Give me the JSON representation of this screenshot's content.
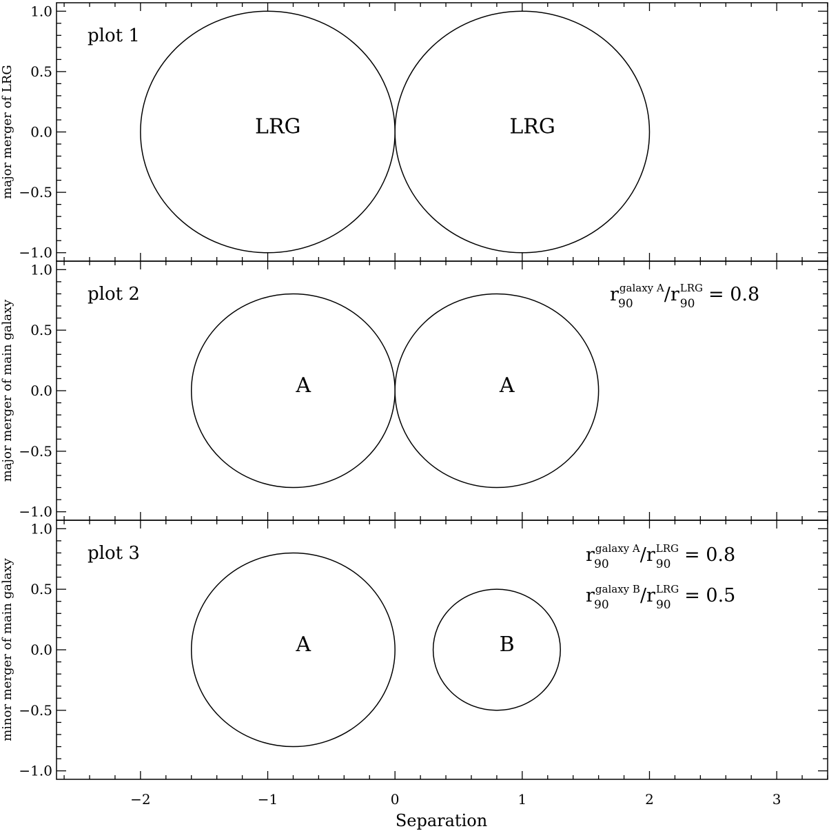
{
  "chart_data": {
    "type": "scatter",
    "x": {
      "label": "Separation",
      "ticks": [
        -2,
        -1,
        0,
        1,
        2,
        3
      ],
      "tick_labels": [
        "−2",
        "−1",
        "0",
        "1",
        "2",
        "3"
      ],
      "range": [
        -2.66,
        3.4
      ],
      "minor_step": 0.2
    },
    "panels": [
      {
        "id": "plot1",
        "title": "plot 1",
        "ylabel": "major merger of LRG",
        "ylim": [
          -1.07,
          1.07
        ],
        "yticks": [
          1.0,
          0.5,
          0.0,
          -0.5,
          -1.0
        ],
        "ytick_labels": [
          "1.0",
          "0.5",
          "0.0",
          "−0.5",
          "−1.0"
        ],
        "circles": [
          {
            "cx": -1.0,
            "cy": 0.0,
            "r": 1.0,
            "label": "LRG"
          },
          {
            "cx": 1.0,
            "cy": 0.0,
            "r": 1.0,
            "label": "LRG"
          }
        ],
        "annotations": []
      },
      {
        "id": "plot2",
        "title": "plot 2",
        "ylabel": "major merger of main galaxy",
        "ylim": [
          -1.07,
          1.07
        ],
        "yticks": [
          1.0,
          0.5,
          0.0,
          -0.5,
          -1.0
        ],
        "ytick_labels": [
          "1.0",
          "0.5",
          "0.0",
          "−0.5",
          "−1.0"
        ],
        "circles": [
          {
            "cx": -0.8,
            "cy": 0.0,
            "r": 0.8,
            "label": "A"
          },
          {
            "cx": 0.8,
            "cy": 0.0,
            "r": 0.8,
            "label": "A"
          }
        ],
        "annotations": [
          {
            "r": "r",
            "sub": "90",
            "sup1": "galaxy A",
            "slash": "/",
            "r2": "r",
            "sub2": "90",
            "sup2": "LRG",
            "eq": "= 0.8"
          }
        ]
      },
      {
        "id": "plot3",
        "title": "plot 3",
        "ylabel": "minor merger of main galaxy",
        "ylim": [
          -1.07,
          1.07
        ],
        "yticks": [
          1.0,
          0.5,
          0.0,
          -0.5,
          -1.0
        ],
        "ytick_labels": [
          "1.0",
          "0.5",
          "0.0",
          "−0.5",
          "−1.0"
        ],
        "circles": [
          {
            "cx": -0.8,
            "cy": 0.0,
            "r": 0.8,
            "label": "A"
          },
          {
            "cx": 0.8,
            "cy": 0.0,
            "r": 0.5,
            "label": "B"
          }
        ],
        "annotations": [
          {
            "r": "r",
            "sub": "90",
            "sup1": "galaxy A",
            "slash": "/",
            "r2": "r",
            "sub2": "90",
            "sup2": "LRG",
            "eq": "= 0.8"
          },
          {
            "r": "r",
            "sub": "90",
            "sup1": "galaxy B",
            "slash": "/",
            "r2": "r",
            "sub2": "90",
            "sup2": "LRG",
            "eq": "= 0.5"
          }
        ]
      }
    ]
  }
}
